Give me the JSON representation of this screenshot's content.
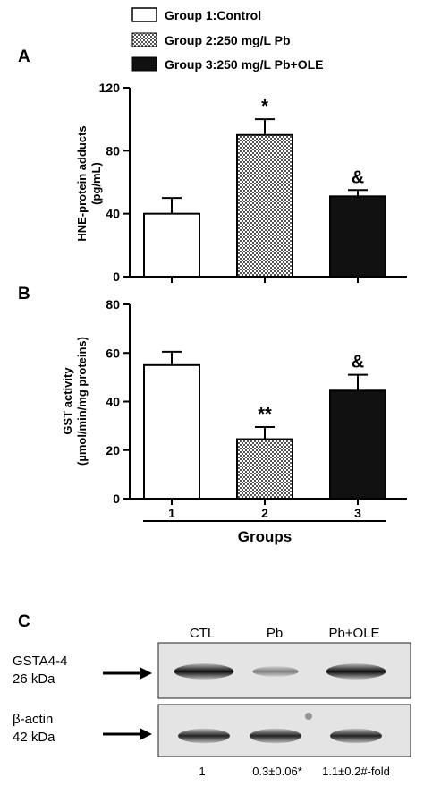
{
  "legend": {
    "items": [
      {
        "label": "Group 1:Control",
        "swatch": "white"
      },
      {
        "label": "Group 2:250 mg/L Pb",
        "swatch": "checker"
      },
      {
        "label": "Group 3:250 mg/L Pb+OLE",
        "swatch": "black"
      }
    ]
  },
  "chart_data": [
    {
      "type": "bar",
      "panel_label": "A",
      "ylabel_line1": "HNE-protein adducts",
      "ylabel_line2": "(pg/mL)",
      "ylim": [
        0,
        120
      ],
      "yticks": [
        "0",
        "40",
        "80",
        "120"
      ],
      "categories": [
        "1",
        "2",
        "3"
      ],
      "values": [
        40,
        90,
        51
      ],
      "errors": [
        10,
        10,
        4
      ],
      "annotations": [
        "",
        "*",
        "&"
      ],
      "show_xtick_labels": false
    },
    {
      "type": "bar",
      "panel_label": "B",
      "ylabel_line1": "GST activity",
      "ylabel_line2": "(µmol/min/mg proteins)",
      "ylim": [
        0,
        80
      ],
      "yticks": [
        "0",
        "20",
        "40",
        "60",
        "80"
      ],
      "categories": [
        "1",
        "2",
        "3"
      ],
      "values": [
        55,
        24.5,
        44.5
      ],
      "errors": [
        5.5,
        5,
        6.5
      ],
      "annotations": [
        "",
        "**",
        "&"
      ],
      "xlabel": "Groups",
      "show_xtick_labels": true
    }
  ],
  "blot": {
    "panel_label": "C",
    "lanes": [
      "CTL",
      "Pb",
      "Pb+OLE"
    ],
    "rows": [
      {
        "name": "GSTA4-4",
        "size": "26 kDa",
        "intensities": [
          0.95,
          0.45,
          0.95
        ]
      },
      {
        "name": "β-actin",
        "size": "42 kDa",
        "intensities": [
          0.85,
          0.85,
          0.85
        ]
      }
    ],
    "fold": [
      "1",
      "0.3±0.06*",
      "1.1±0.2#-fold"
    ]
  }
}
